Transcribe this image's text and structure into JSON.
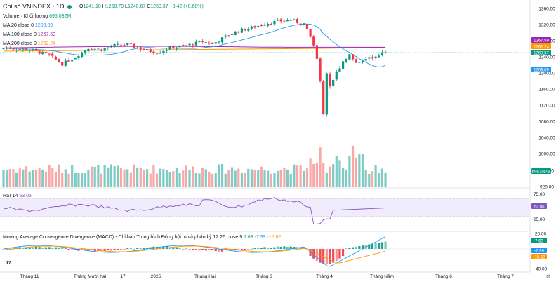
{
  "header": {
    "symbol": "Chỉ số VNINDEX · 1D",
    "ohlc": {
      "o_label": "O",
      "o": "1241.10",
      "h_label": "H",
      "h": "1250.79",
      "l_label": "L",
      "l": "1240.67",
      "c_label": "C",
      "c": "1250.37",
      "chg": "+8.42 (+0.68%)"
    },
    "status_dot_color": "#089981"
  },
  "legends": {
    "volume": {
      "label": "Volume · Khối lượng",
      "value": "696.032M",
      "color": "#089981"
    },
    "ma20": {
      "label": "MA 20 close 0",
      "value": "1209.89",
      "color": "#2196f3"
    },
    "ma100": {
      "label": "MA 100 close 0",
      "value": "1267.59",
      "color": "#9c27b0"
    },
    "ma200": {
      "label": "MA 200 close 0",
      "value": "1262.24",
      "color": "#ff9800"
    },
    "rsi": {
      "label": "RSI 14",
      "value": "53.05",
      "color": "#7e57c2"
    },
    "macd": {
      "label": "Moving Average Convergence Divergence (MACD) - Chỉ báo Trung bình Động hội tụ và phân kỳ 12 26 close 9",
      "v1": "7.63",
      "v2": "-7.99",
      "v3": "-15.62"
    }
  },
  "price_axis": {
    "ticks": [
      "1360.00",
      "1320.00",
      "1280.00",
      "1240.00",
      "1200.00",
      "1160.00",
      "1120.00",
      "1080.00",
      "1040.00",
      "1000.00",
      "960.00",
      "920.00"
    ],
    "badges": [
      {
        "text": "1267.59",
        "color": "#9c27b0"
      },
      {
        "text": "1262.24",
        "color": "#ff9800"
      },
      {
        "text": "1250.37",
        "color": "#089981"
      },
      {
        "text": "1209.89",
        "color": "#2196f3"
      },
      {
        "text": "696.032M",
        "color": "#089981"
      }
    ]
  },
  "rsi_axis": {
    "ticks": [
      "75.00",
      "25.00"
    ],
    "badge": "53.05"
  },
  "macd_axis": {
    "ticks": [
      "20.00",
      "0.00",
      "-40.00"
    ],
    "badges": [
      {
        "text": "7.63",
        "color": "#089981"
      },
      {
        "text": "-7.99",
        "color": "#2196f3"
      },
      {
        "text": "-15.62",
        "color": "#ff9800"
      }
    ]
  },
  "time_axis": [
    "Tháng 11",
    "Tháng Mười hai",
    "17",
    "2025",
    "Tháng Hai",
    "Tháng 3",
    "Tháng 4",
    "Tháng Năm",
    "Tháng 6",
    "Tháng 7"
  ],
  "colors": {
    "up": "#089981",
    "down": "#f23645",
    "vol_up": "#80cbc4",
    "vol_down": "#f7a9a7"
  }
}
